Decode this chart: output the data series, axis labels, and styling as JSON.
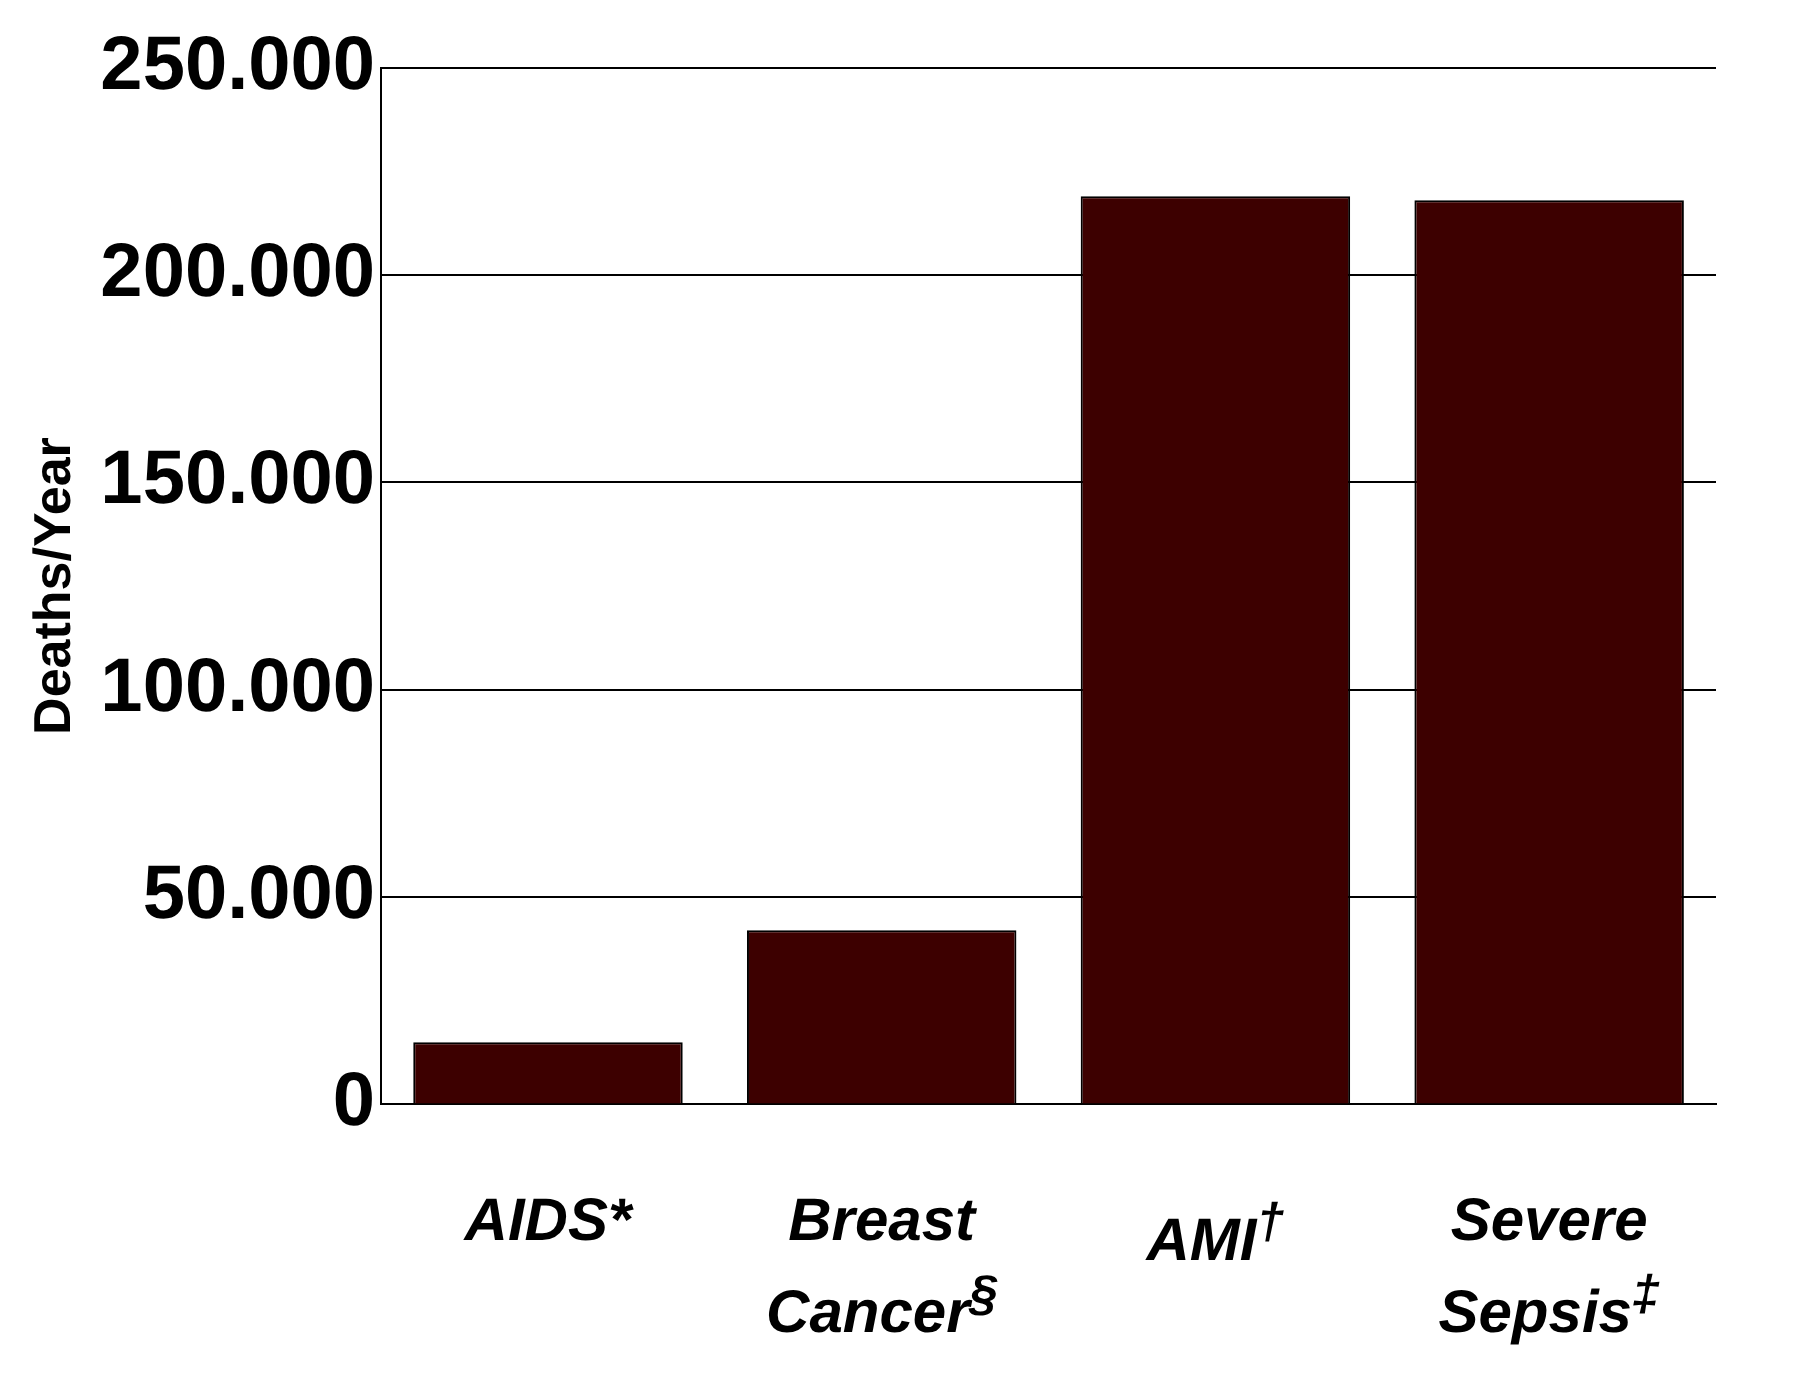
{
  "chart_data": {
    "type": "bar",
    "ylabel": "Deaths/Year",
    "categories": [
      "AIDS*",
      "Breast Cancer$^{§}$",
      "AMI$^{†}$",
      "Severe Sepsis$^{‡}$"
    ],
    "values": [
      15000,
      42000,
      219000,
      218000
    ],
    "color": "#3d0000",
    "ylim": [
      0,
      250000
    ],
    "yticks": [
      0,
      {
        "value": 50000,
        "label": "50.000"
      },
      {
        "value": 100000,
        "label": "100.000"
      },
      {
        "value": 150000,
        "label": "150.000"
      },
      {
        "value": 200000,
        "label": "200.000"
      },
      {
        "value": 250000,
        "label": "250.000"
      }
    ],
    "grid": "y"
  }
}
